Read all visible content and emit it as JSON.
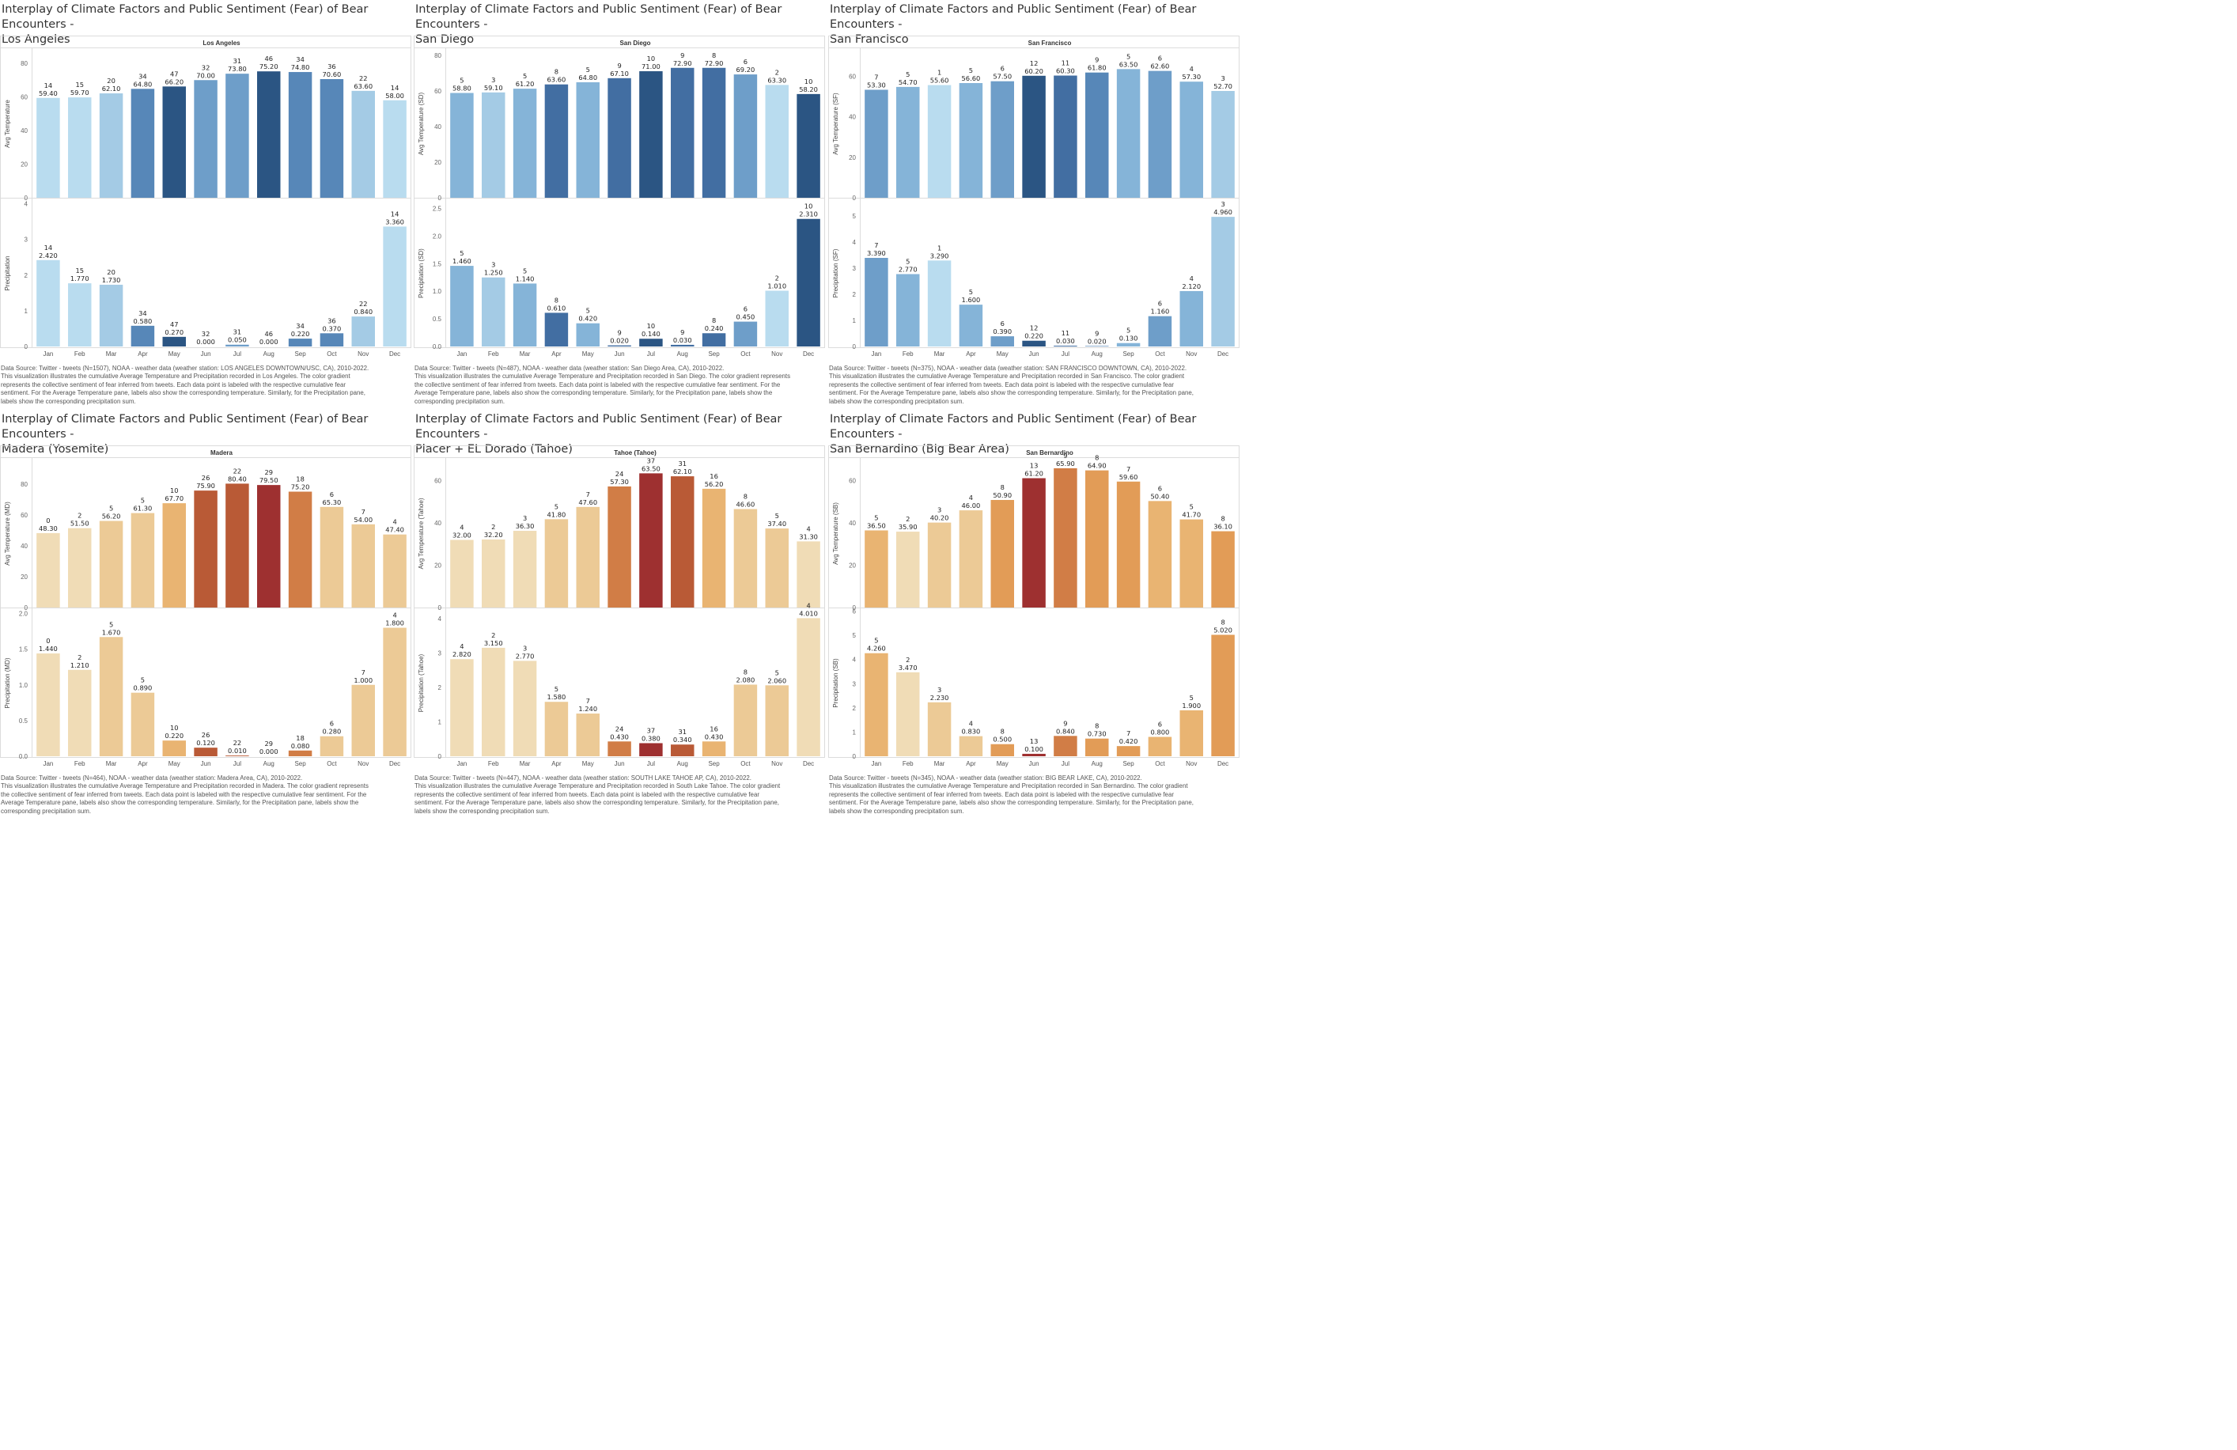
{
  "months": [
    "Jan",
    "Feb",
    "Mar",
    "Apr",
    "May",
    "Jun",
    "Jul",
    "Aug",
    "Sep",
    "Oct",
    "Nov",
    "Dec"
  ],
  "dashboards": [
    {
      "title_line1": "Interplay of Climate Factors and Public Sentiment (Fear) of Bear Encounters -",
      "title_line2": "Los Angeles",
      "pane_title": "Los Angeles",
      "temp_axis_label": "Avg Temperature",
      "precip_axis_label": "Precipitation",
      "palette": "blue",
      "temp_ticks": [
        0,
        20,
        40,
        60,
        80
      ],
      "precip_ticks": [
        0,
        1,
        2,
        3,
        4
      ],
      "source_line1": "Data Source: Twitter - tweets (N=1507), NOAA - weather data (weather station: LOS ANGELES DOWNTOWN/USC, CA), 2010-2022.",
      "source_line2": "This visualization illustrates the cumulative Average Temperature and Precipitation recorded in Los Angeles. The color gradient",
      "source_line3": "represents the collective sentiment of fear inferred from tweets. Each data point is labeled with the respective cumulative fear",
      "source_line4": "sentiment. For the Average Temperature pane, labels also show the corresponding temperature. Similarly, for the Precipitation pane,",
      "source_line5": "labels show the corresponding precipitation sum."
    },
    {
      "title_line1": "Interplay of Climate Factors and Public Sentiment (Fear) of Bear Encounters -",
      "title_line2": "San Diego",
      "pane_title": "San Diego",
      "temp_axis_label": "Avg Temperature (SD)",
      "precip_axis_label": "Precipitation (SD)",
      "palette": "blue",
      "temp_ticks": [
        0,
        20,
        40,
        60,
        80
      ],
      "precip_ticks": [
        0.0,
        0.5,
        1.0,
        1.5,
        2.0,
        2.5
      ],
      "source_line1": "Data Source: Twitter - tweets (N=487), NOAA - weather data (weather station: San Diego Area, CA), 2010-2022.",
      "source_line2": "This visualization illustrates the cumulative Average Temperature and Precipitation recorded in San Diego. The color gradient represents",
      "source_line3": "the collective sentiment of fear inferred from tweets. Each data point is labeled with the respective cumulative fear sentiment. For the",
      "source_line4": "Average Temperature pane, labels also show the corresponding temperature. Similarly, for the Precipitation pane, labels show the",
      "source_line5": "corresponding precipitation sum."
    },
    {
      "title_line1": "Interplay of Climate Factors and Public Sentiment (Fear) of Bear Encounters -",
      "title_line2": "San Francisco",
      "pane_title": "San Francisco",
      "temp_axis_label": "Avg Temperature (SF)",
      "precip_axis_label": "Precipitation (SF)",
      "palette": "blue",
      "temp_ticks": [
        0,
        20,
        40,
        60
      ],
      "precip_ticks": [
        0,
        1,
        2,
        3,
        4,
        5
      ],
      "source_line1": "Data Source: Twitter - tweets (N=375), NOAA - weather data (weather station: SAN FRANCISCO DOWNTOWN, CA), 2010-2022.",
      "source_line2": "This visualization illustrates the cumulative Average Temperature and Precipitation recorded in San Francisco. The color gradient",
      "source_line3": "represents the collective sentiment of fear inferred from tweets. Each data point is labeled with the respective cumulative fear",
      "source_line4": "sentiment. For the Average Temperature pane, labels also show the corresponding temperature. Similarly, for the Precipitation pane,",
      "source_line5": "labels show the corresponding precipitation sum."
    },
    {
      "title_line1": "Interplay of Climate Factors and Public Sentiment (Fear) of Bear Encounters -",
      "title_line2": "Madera (Yosemite)",
      "pane_title": "Madera",
      "temp_axis_label": "Avg Temperature (MD)",
      "precip_axis_label": "Precipitation (MD)",
      "palette": "orange",
      "temp_ticks": [
        0,
        20,
        40,
        60,
        80
      ],
      "precip_ticks": [
        0.0,
        0.5,
        1.0,
        1.5,
        2.0
      ],
      "source_line1": "Data Source: Twitter - tweets (N=464), NOAA - weather data (weather station: Madera Area, CA), 2010-2022.",
      "source_line2": "This visualization illustrates the cumulative Average Temperature and Precipitation recorded in Madera. The color gradient represents",
      "source_line3": "the collective sentiment of fear inferred from tweets. Each data point is labeled with the respective cumulative fear sentiment. For the",
      "source_line4": "Average Temperature pane, labels also show the corresponding temperature. Similarly, for the Precipitation pane, labels show the",
      "source_line5": "corresponding precipitation sum."
    },
    {
      "title_line1": "Interplay of Climate Factors and Public Sentiment (Fear) of Bear Encounters -",
      "title_line2": "Placer + EL Dorado (Tahoe)",
      "pane_title": "Tahoe (Tahoe)",
      "temp_axis_label": "Avg Temperature (Tahoe)",
      "precip_axis_label": "Precipitation (Tahoe)",
      "palette": "orange",
      "temp_ticks": [
        0,
        20,
        40,
        60
      ],
      "precip_ticks": [
        0,
        1,
        2,
        3,
        4
      ],
      "source_line1": "Data Source: Twitter - tweets (N=447), NOAA - weather data (weather station: SOUTH LAKE TAHOE AP, CA), 2010-2022.",
      "source_line2": "This visualization illustrates the cumulative Average Temperature and Precipitation recorded in South Lake Tahoe. The color gradient",
      "source_line3": "represents the collective sentiment of fear inferred from tweets. Each data point is labeled with the respective cumulative fear",
      "source_line4": "sentiment. For the Average Temperature pane, labels also show the corresponding temperature. Similarly, for the Precipitation pane,",
      "source_line5": "labels show the corresponding precipitation sum."
    },
    {
      "title_line1": "Interplay of Climate Factors and Public Sentiment (Fear) of Bear Encounters -",
      "title_line2": "San Bernardino (Big Bear Area)",
      "pane_title": "San Bernardino",
      "temp_axis_label": "Avg Temperature (SB)",
      "precip_axis_label": "Precipitation (SB)",
      "palette": "orange",
      "temp_ticks": [
        0,
        20,
        40,
        60
      ],
      "precip_ticks": [
        0,
        1,
        2,
        3,
        4,
        5,
        6
      ],
      "source_line1": "Data Source: Twitter - tweets (N=345), NOAA - weather data (weather station: BIG BEAR LAKE, CA), 2010-2022.",
      "source_line2": "This visualization illustrates the cumulative Average Temperature and Precipitation recorded in San Bernardino. The color gradient",
      "source_line3": "represents the collective sentiment of fear inferred from tweets. Each data point is labeled with the respective cumulative fear",
      "source_line4": "sentiment. For the Average Temperature pane, labels also show the corresponding temperature. Similarly, for the Precipitation pane,",
      "source_line5": "labels show the corresponding precipitation sum."
    }
  ],
  "chart_data": [
    {
      "type": "bar",
      "title": "Los Angeles",
      "categories": [
        "Jan",
        "Feb",
        "Mar",
        "Apr",
        "May",
        "Jun",
        "Jul",
        "Aug",
        "Sep",
        "Oct",
        "Nov",
        "Dec"
      ],
      "series": [
        {
          "name": "Avg Temperature",
          "values": [
            59.4,
            59.7,
            62.1,
            64.8,
            66.2,
            70.0,
            73.8,
            75.2,
            74.8,
            70.6,
            63.6,
            58.0
          ],
          "fear": [
            14,
            15,
            20,
            34,
            47,
            32,
            31,
            46,
            34,
            36,
            22,
            14
          ],
          "ylim": [
            0,
            88
          ]
        },
        {
          "name": "Precipitation",
          "values": [
            2.42,
            1.77,
            1.73,
            0.58,
            0.27,
            0.0,
            0.05,
            0.0,
            0.22,
            0.37,
            0.84,
            3.36
          ],
          "fear": [
            14,
            15,
            20,
            34,
            47,
            32,
            31,
            46,
            34,
            36,
            22,
            14
          ],
          "ylim": [
            0,
            4.1
          ]
        }
      ]
    },
    {
      "type": "bar",
      "title": "San Diego",
      "categories": [
        "Jan",
        "Feb",
        "Mar",
        "Apr",
        "May",
        "Jun",
        "Jul",
        "Aug",
        "Sep",
        "Oct",
        "Nov",
        "Dec"
      ],
      "series": [
        {
          "name": "Avg Temperature (SD)",
          "values": [
            58.8,
            59.1,
            61.2,
            63.6,
            64.8,
            67.1,
            71.0,
            72.9,
            72.9,
            69.2,
            63.3,
            58.2
          ],
          "fear": [
            5,
            3,
            5,
            8,
            5,
            9,
            10,
            9,
            8,
            6,
            2,
            10
          ],
          "ylim": [
            0,
            83
          ]
        },
        {
          "name": "Precipitation (SD)",
          "values": [
            1.46,
            1.25,
            1.14,
            0.61,
            0.42,
            0.02,
            0.14,
            0.03,
            0.24,
            0.45,
            1.01,
            2.31
          ],
          "fear": [
            5,
            3,
            5,
            8,
            5,
            9,
            10,
            9,
            8,
            6,
            2,
            10
          ],
          "ylim": [
            0,
            2.65
          ]
        }
      ]
    },
    {
      "type": "bar",
      "title": "San Francisco",
      "categories": [
        "Jan",
        "Feb",
        "Mar",
        "Apr",
        "May",
        "Jun",
        "Jul",
        "Aug",
        "Sep",
        "Oct",
        "Nov",
        "Dec"
      ],
      "series": [
        {
          "name": "Avg Temperature (SF)",
          "values": [
            53.3,
            54.7,
            55.6,
            56.6,
            57.5,
            60.2,
            60.3,
            61.8,
            63.5,
            62.6,
            57.3,
            52.7
          ],
          "fear": [
            7,
            5,
            1,
            5,
            6,
            12,
            11,
            9,
            5,
            6,
            4,
            3
          ],
          "ylim": [
            0,
            73
          ]
        },
        {
          "name": "Precipitation (SF)",
          "values": [
            3.39,
            2.77,
            3.29,
            1.6,
            0.39,
            0.22,
            0.03,
            0.02,
            0.13,
            1.16,
            2.12,
            4.96
          ],
          "fear": [
            7,
            5,
            1,
            5,
            6,
            12,
            11,
            9,
            5,
            6,
            4,
            3
          ],
          "ylim": [
            0,
            5.6
          ]
        }
      ]
    },
    {
      "type": "bar",
      "title": "Madera",
      "categories": [
        "Jan",
        "Feb",
        "Mar",
        "Apr",
        "May",
        "Jun",
        "Jul",
        "Aug",
        "Sep",
        "Oct",
        "Nov",
        "Dec"
      ],
      "series": [
        {
          "name": "Avg Temperature (MD)",
          "values": [
            48.3,
            51.5,
            56.2,
            61.3,
            67.7,
            75.9,
            80.4,
            79.5,
            75.2,
            65.3,
            54.0,
            47.4
          ],
          "fear": [
            0,
            2,
            5,
            5,
            10,
            26,
            22,
            29,
            18,
            6,
            7,
            4
          ],
          "ylim": [
            0,
            96
          ]
        },
        {
          "name": "Precipitation (MD)",
          "values": [
            1.44,
            1.21,
            1.67,
            0.89,
            0.22,
            0.12,
            0.01,
            0.0,
            0.08,
            0.28,
            1.0,
            1.8
          ],
          "fear": [
            0,
            2,
            5,
            5,
            10,
            26,
            22,
            29,
            18,
            6,
            7,
            4
          ],
          "ylim": [
            0,
            2.05
          ]
        }
      ]
    },
    {
      "type": "bar",
      "title": "Tahoe (Tahoe)",
      "categories": [
        "Jan",
        "Feb",
        "Mar",
        "Apr",
        "May",
        "Jun",
        "Jul",
        "Aug",
        "Sep",
        "Oct",
        "Nov",
        "Dec"
      ],
      "series": [
        {
          "name": "Avg Temperature (Tahoe)",
          "values": [
            32.0,
            32.2,
            36.3,
            41.8,
            47.6,
            57.3,
            63.5,
            62.1,
            56.2,
            46.6,
            37.4,
            31.3
          ],
          "fear": [
            4,
            2,
            3,
            5,
            7,
            24,
            37,
            31,
            16,
            8,
            5,
            4
          ],
          "ylim": [
            0,
            70
          ]
        },
        {
          "name": "Precipitation (Tahoe)",
          "values": [
            2.82,
            3.15,
            2.77,
            1.58,
            1.24,
            0.43,
            0.38,
            0.34,
            0.43,
            2.08,
            2.06,
            4.01
          ],
          "fear": [
            4,
            2,
            3,
            5,
            7,
            24,
            37,
            31,
            16,
            8,
            5,
            4
          ],
          "ylim": [
            0,
            4.25
          ]
        }
      ]
    },
    {
      "type": "bar",
      "title": "San Bernardino",
      "categories": [
        "Jan",
        "Feb",
        "Mar",
        "Apr",
        "May",
        "Jun",
        "Jul",
        "Aug",
        "Sep",
        "Oct",
        "Nov",
        "Dec"
      ],
      "series": [
        {
          "name": "Avg Temperature (SB)",
          "values": [
            36.5,
            35.9,
            40.2,
            46.0,
            50.9,
            61.2,
            65.9,
            64.9,
            59.6,
            50.4,
            41.7,
            36.1
          ],
          "fear": [
            5,
            2,
            3,
            4,
            8,
            13,
            9,
            8,
            7,
            6,
            5,
            8
          ],
          "ylim": [
            0,
            70
          ]
        },
        {
          "name": "Precipitation (SB)",
          "values": [
            4.26,
            3.47,
            2.23,
            0.83,
            0.5,
            0.1,
            0.84,
            0.73,
            0.42,
            0.8,
            1.9,
            5.02
          ],
          "fear": [
            5,
            2,
            3,
            4,
            8,
            13,
            9,
            8,
            7,
            6,
            5,
            8
          ],
          "ylim": [
            0,
            6.05
          ]
        }
      ]
    }
  ]
}
